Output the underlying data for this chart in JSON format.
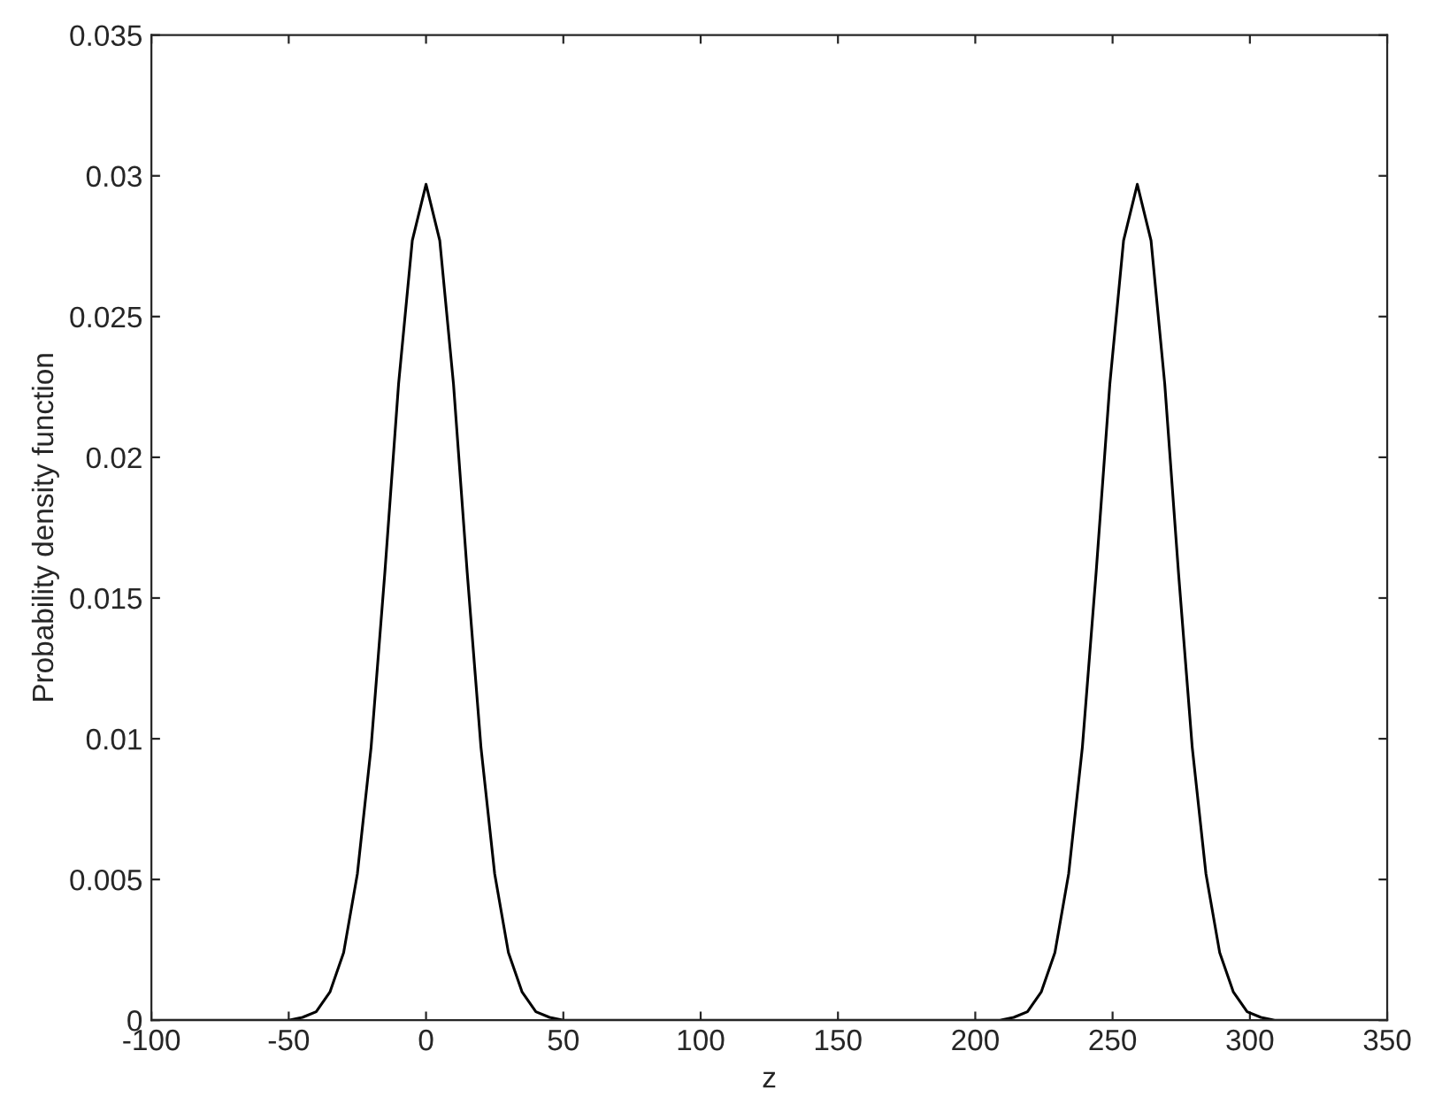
{
  "chart_data": {
    "type": "line",
    "xlabel": "z",
    "ylabel": "Probability density function",
    "xlim": [
      -100,
      350
    ],
    "xticks": [
      -100,
      -50,
      0,
      50,
      100,
      150,
      200,
      250,
      300,
      350
    ],
    "ylim": [
      0,
      0.035
    ],
    "yticks": [
      0,
      0.005,
      0.01,
      0.015,
      0.02,
      0.025,
      0.03,
      0.035
    ],
    "grid": false,
    "series": [
      {
        "color": "#000000",
        "x": [
          -100,
          -55,
          -50,
          -45,
          -40,
          -35,
          -30,
          -25,
          -20,
          -15,
          -10,
          -5,
          0,
          5,
          10,
          15,
          20,
          25,
          30,
          35,
          40,
          45,
          50,
          55,
          100,
          150,
          204,
          209,
          214,
          219,
          224,
          229,
          234,
          239,
          244,
          249,
          254,
          259,
          264,
          269,
          274,
          279,
          284,
          289,
          294,
          299,
          304,
          309,
          314,
          350
        ],
        "values": [
          0,
          0,
          0,
          0.0001,
          0.0003,
          0.001,
          0.0024,
          0.0052,
          0.0097,
          0.0159,
          0.0226,
          0.0277,
          0.0297,
          0.0277,
          0.0226,
          0.0159,
          0.0097,
          0.0052,
          0.0024,
          0.001,
          0.0003,
          0.0001,
          0,
          0,
          0,
          0,
          0,
          0,
          0.0001,
          0.0003,
          0.001,
          0.0024,
          0.0052,
          0.0097,
          0.0159,
          0.0226,
          0.0277,
          0.0297,
          0.0277,
          0.0226,
          0.0159,
          0.0097,
          0.0052,
          0.0024,
          0.001,
          0.0003,
          0.0001,
          0,
          0,
          0
        ]
      }
    ]
  }
}
